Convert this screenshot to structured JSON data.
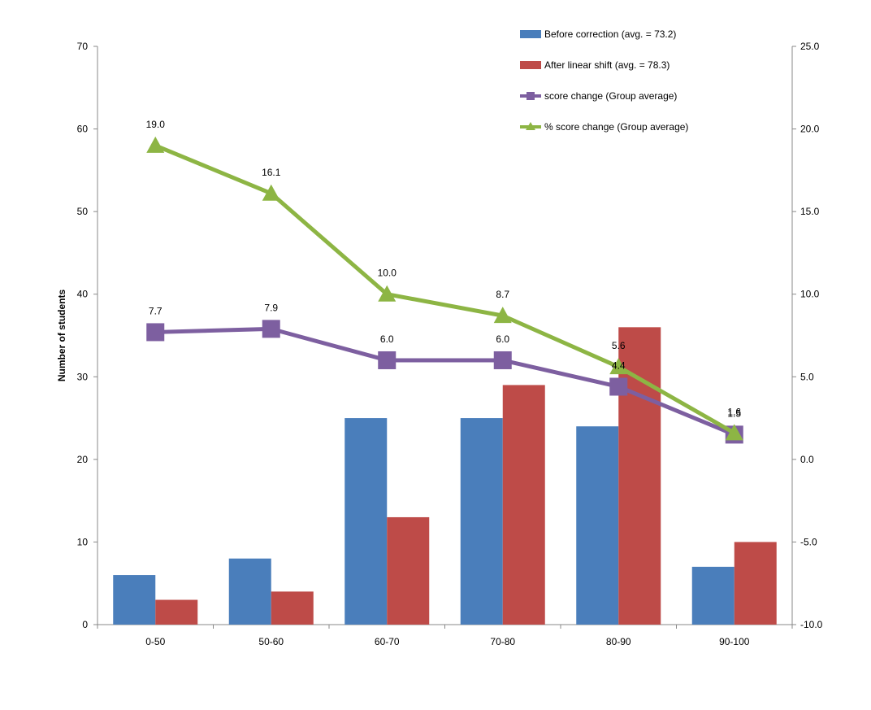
{
  "chart_data": {
    "type": "bar",
    "categories": [
      "0-50",
      "50-60",
      "60-70",
      "70-80",
      "80-90",
      "90-100"
    ],
    "ylabel": "Number of students",
    "ylim": [
      0,
      70
    ],
    "yticks": [
      0,
      10,
      20,
      30,
      40,
      50,
      60,
      70
    ],
    "y2lim": [
      -10.0,
      25.0
    ],
    "y2ticks": [
      "-10.0",
      "-5.0",
      "0.0",
      "5.0",
      "10.0",
      "15.0",
      "20.0",
      "25.0"
    ],
    "grid": false,
    "legend_position": "top-right",
    "series": [
      {
        "name": "Before correction (avg. = 73.2)",
        "kind": "bar",
        "axis": "left",
        "color": "#4a7ebb",
        "values": [
          6,
          8,
          25,
          25,
          24,
          7
        ]
      },
      {
        "name": "After linear shift (avg. = 78.3)",
        "kind": "bar",
        "axis": "left",
        "color": "#be4b48",
        "values": [
          3,
          4,
          13,
          29,
          36,
          10
        ]
      },
      {
        "name": "score change (Group average)",
        "kind": "line",
        "marker": "square",
        "axis": "right",
        "color": "#7d5fa0",
        "values": [
          7.7,
          7.9,
          6.0,
          6.0,
          4.4,
          1.5
        ],
        "labels": [
          "7.7",
          "7.9",
          "6.0",
          "6.0",
          "4.4",
          "1.5"
        ]
      },
      {
        "name": "% score change (Group average)",
        "kind": "line",
        "marker": "triangle",
        "axis": "right",
        "color": "#8db544",
        "values": [
          19.0,
          16.1,
          10.0,
          8.7,
          5.6,
          1.6
        ],
        "labels": [
          "19.0",
          "16.1",
          "10.0",
          "8.7",
          "5.6",
          "1.6"
        ]
      }
    ]
  }
}
